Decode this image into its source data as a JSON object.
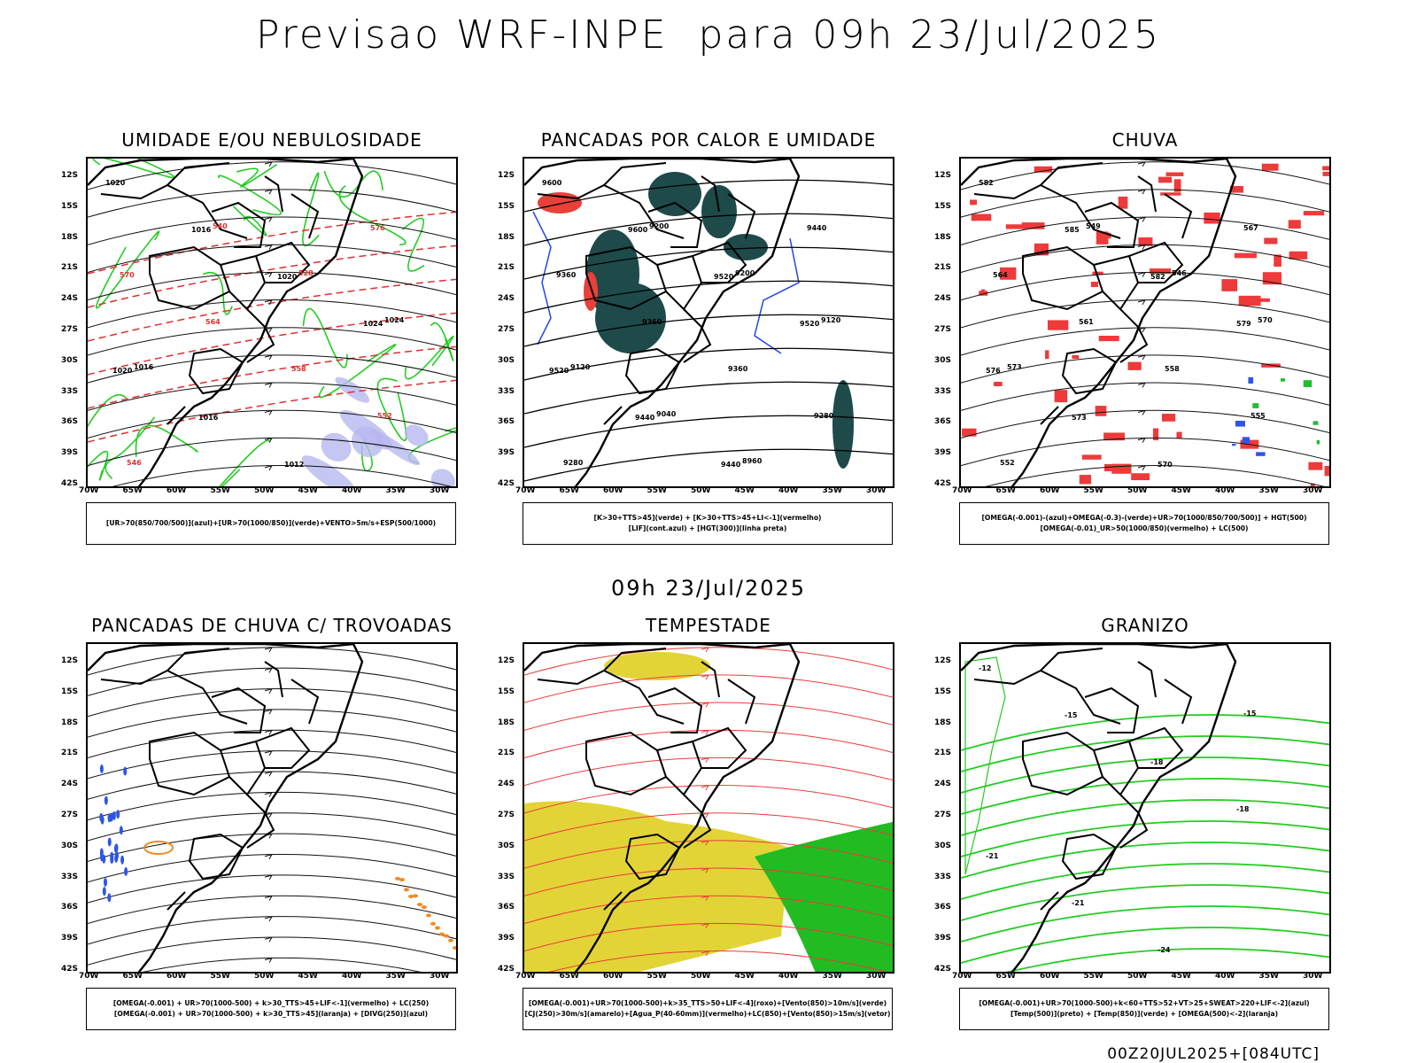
{
  "header": {
    "title": "Previsao WRF-INPE  para 09h 23/Jul/2025",
    "mid_time": "09h 23/Jul/2025",
    "footer": "00Z20JUL2025+[084UTC]"
  },
  "axes": {
    "lat_labels": [
      "12S",
      "15S",
      "18S",
      "21S",
      "24S",
      "27S",
      "30S",
      "33S",
      "36S",
      "39S",
      "42S"
    ],
    "lon_labels": [
      "70W",
      "65W",
      "60W",
      "55W",
      "50W",
      "45W",
      "40W",
      "35W",
      "30W"
    ]
  },
  "panels": [
    {
      "id": "umidade",
      "title": "UMIDADE E/OU NEBULOSIDADE",
      "legend": [
        "[UR>70(850/700/500)](azul)+[UR>70(1000/850)](verde)+VENTO>5m/s+ESP(500/1000)"
      ],
      "contour_labels": [
        "1020",
        "1016",
        "1020",
        "1024",
        "1020",
        "1016",
        "1012",
        "576",
        "570",
        "564",
        "558",
        "552",
        "546",
        "540",
        "528",
        "1024",
        "1016"
      ]
    },
    {
      "id": "pancadas_calor",
      "title": "PANCADAS POR CALOR E UMIDADE",
      "legend": [
        "[K>30+TTS>45](verde) + [K>30+TTS>45+LI<-1](vermelho)",
        "[LIF](cont.azul) + [HGT(300)](linha preta)"
      ],
      "contour_labels": [
        "9600",
        "9600",
        "9520",
        "9520",
        "9520",
        "9440",
        "9440",
        "9440",
        "9360",
        "9360",
        "9360",
        "9280",
        "9280",
        "9200",
        "9200",
        "9120",
        "9120",
        "9040",
        "8960"
      ]
    },
    {
      "id": "chuva",
      "title": "CHUVA",
      "legend": [
        "[OMEGA(-0.001)-(azul)+OMEGA(-0.3)-(verde)+UR>70(1000/850/700/500)] + HGT(500)",
        "[OMEGA(-0.01)_UR>50(1000/850)(vermelho) + LC(500)"
      ],
      "contour_labels": [
        "582",
        "585",
        "582",
        "579",
        "576",
        "573",
        "570",
        "567",
        "564",
        "561",
        "558",
        "555",
        "552",
        "549",
        "546",
        "570",
        "573"
      ]
    },
    {
      "id": "trovoadas",
      "title": "PANCADAS DE CHUVA C/ TROVOADAS",
      "legend": [
        "[OMEGA(-0.001) + UR>70(1000-500) + k>30_TTS>45+LIF<-1](vermelho) + LC(250)",
        "[OMEGA(-0.001) + UR>70(1000-500) + k>30_TTS>45](laranja) + [DIVG(250)](azul)"
      ],
      "contour_labels": []
    },
    {
      "id": "tempestade",
      "title": "TEMPESTADE",
      "legend": [
        "[OMEGA(-0.001)+UR>70(1000-500)+k>35_TTS>50+LIF<-4](roxo)+[Vento(850)>10m/s](verde)",
        "[CJ(250)>30m/s](amarelo)+[Agua_P(40-60mm)](vermelho)+LC(850)+[Vento(850)>15m/s](vetor)"
      ],
      "contour_labels": []
    },
    {
      "id": "granizo",
      "title": "GRANIZO",
      "legend": [
        "[OMEGA(-0.001)+UR>70(1000-500)+k<60+TTS>52+VT>25+SWEAT>220+LIF<-2](azul)",
        "[Temp(500)](preto) + [Temp(850)](verde) + [OMEGA(500)<-2](laranja)"
      ],
      "contour_labels": [
        "-12",
        "-15",
        "-18",
        "-18",
        "-21",
        "-21",
        "-24",
        "-15"
      ]
    }
  ]
}
